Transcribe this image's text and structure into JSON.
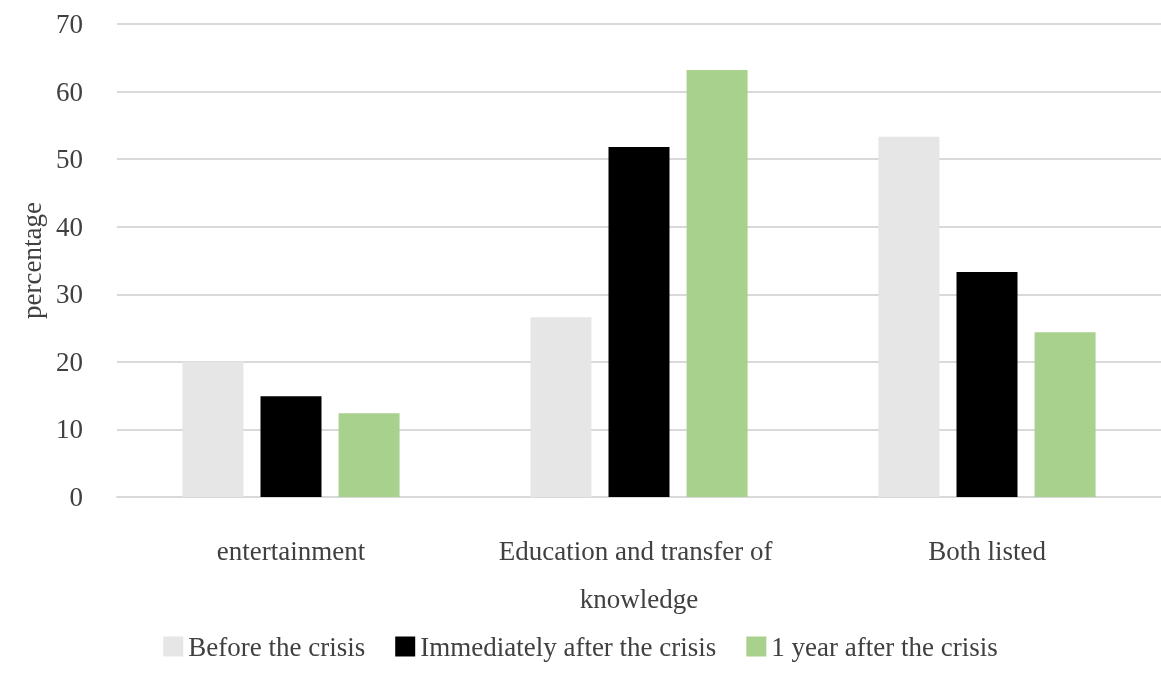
{
  "chart_data": {
    "type": "bar",
    "ylabel": "percentage",
    "categories": [
      "entertainment",
      "Education and transfer of knowledge",
      "Both listed"
    ],
    "series": [
      {
        "name": "Before the crisis",
        "color": "#e6e6e6",
        "values": [
          20.0,
          26.6,
          53.3
        ]
      },
      {
        "name": "Immediately after the crisis",
        "color": "#000000",
        "values": [
          14.9,
          51.8,
          33.3
        ]
      },
      {
        "name": "1 year after the crisis",
        "color": "#a9d18e",
        "values": [
          12.4,
          63.2,
          24.4
        ]
      }
    ],
    "ylim": [
      0,
      70
    ],
    "yticks": [
      0,
      10,
      20,
      30,
      40,
      50,
      60,
      70
    ],
    "grid": "y",
    "legend": "bottom"
  }
}
